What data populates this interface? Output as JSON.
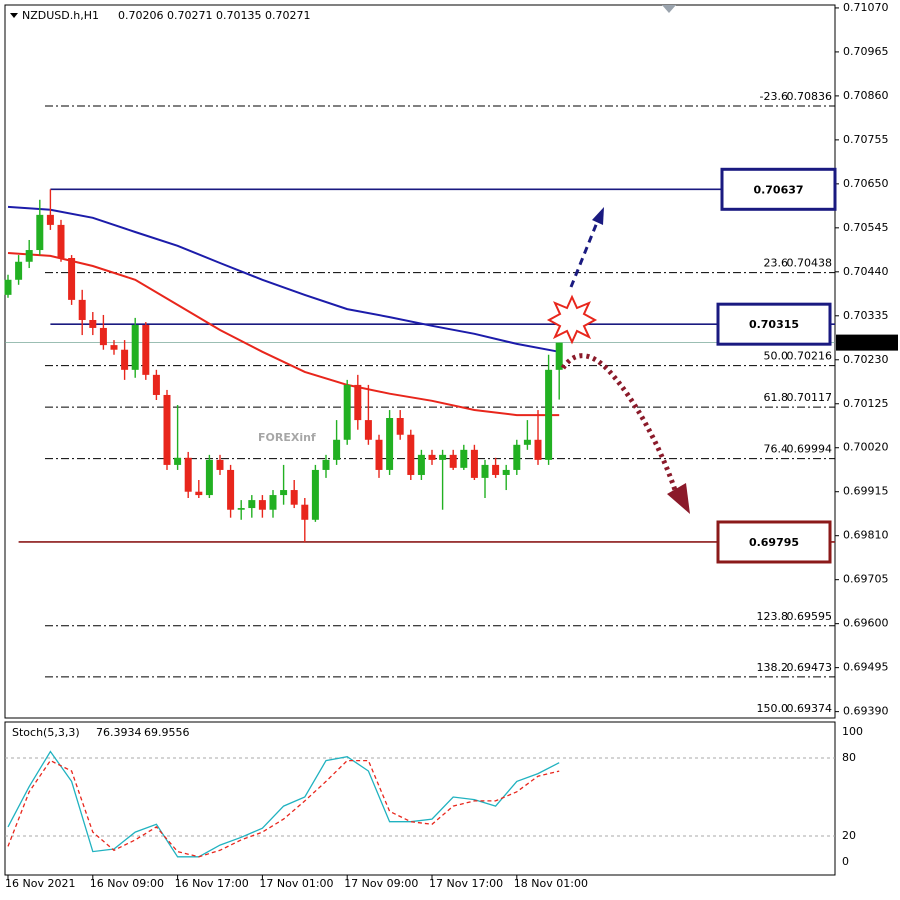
{
  "chart_data": [
    {
      "type": "candlestick",
      "title": "NZDUSD.h,H1",
      "watermark": "FOREXinf",
      "categories": [
        "16 Nov 2021",
        null,
        null,
        null,
        null,
        null,
        null,
        null,
        "16 Nov 09:00",
        null,
        null,
        null,
        null,
        null,
        null,
        null,
        "16 Nov 17:00",
        null,
        null,
        null,
        null,
        null,
        null,
        null,
        "17 Nov 01:00",
        null,
        null,
        null,
        null,
        null,
        null,
        null,
        "17 Nov 09:00",
        null,
        null,
        null,
        null,
        null,
        null,
        null,
        "17 Nov 17:00",
        null,
        null,
        null,
        null,
        null,
        null,
        null,
        "18 Nov 01:00",
        null,
        null,
        null,
        null
      ],
      "ohlc": {
        "open": [
          0.70385,
          0.70421,
          0.70464,
          0.70492,
          0.70576,
          0.70552,
          0.70473,
          0.70373,
          0.70325,
          0.70306,
          0.70265,
          0.70254,
          0.70206,
          0.70313,
          0.70194,
          0.70146,
          0.69979,
          0.69996,
          0.69915,
          0.69907,
          0.69991,
          0.69967,
          0.69872,
          0.69876,
          0.69895,
          0.69872,
          0.69907,
          0.69919,
          0.69884,
          0.69848,
          0.69967,
          0.69991,
          0.70039,
          0.7017,
          0.70086,
          0.70039,
          0.69967,
          0.70091,
          0.70051,
          0.69955,
          0.70003,
          0.69991,
          0.70003,
          0.69972,
          0.70015,
          0.69948,
          0.69979,
          0.69955,
          0.69967,
          0.70027,
          0.70039,
          0.69991,
          0.70206
        ],
        "high": [
          0.70433,
          0.7048,
          0.70516,
          0.70612,
          0.70637,
          0.70564,
          0.7048,
          0.70397,
          0.70344,
          0.70337,
          0.70277,
          0.70277,
          0.7033,
          0.7032,
          0.70206,
          0.70158,
          0.70122,
          0.7001,
          0.69943,
          0.70003,
          0.70003,
          0.69979,
          0.69895,
          0.69907,
          0.69907,
          0.69919,
          0.69979,
          0.69943,
          0.699,
          0.69979,
          0.70003,
          0.70086,
          0.70182,
          0.70194,
          0.7017,
          0.70051,
          0.7011,
          0.7011,
          0.70063,
          0.70015,
          0.70015,
          0.70015,
          0.70015,
          0.70027,
          0.70027,
          0.69991,
          0.69996,
          0.69979,
          0.70039,
          0.70086,
          0.7011,
          0.70242,
          0.70271
        ],
        "low": [
          0.70378,
          0.70409,
          0.70449,
          0.7048,
          0.7054,
          0.70464,
          0.70361,
          0.70289,
          0.70289,
          0.70254,
          0.70242,
          0.70182,
          0.70187,
          0.70182,
          0.70134,
          0.69967,
          0.69967,
          0.699,
          0.699,
          0.699,
          0.69955,
          0.69853,
          0.69848,
          0.69853,
          0.69853,
          0.69853,
          0.69884,
          0.69876,
          0.69795,
          0.69843,
          0.69948,
          0.69979,
          0.70027,
          0.70063,
          0.70027,
          0.69948,
          0.69955,
          0.70039,
          0.69943,
          0.69943,
          0.69979,
          0.69872,
          0.69967,
          0.69967,
          0.69943,
          0.699,
          0.69948,
          0.69919,
          0.69955,
          0.70015,
          0.69979,
          0.69979,
          0.70135
        ],
        "close": [
          0.70421,
          0.70464,
          0.70492,
          0.70576,
          0.70552,
          0.70473,
          0.70373,
          0.70325,
          0.70306,
          0.70265,
          0.70254,
          0.70206,
          0.70313,
          0.70194,
          0.70146,
          0.69979,
          0.69996,
          0.69915,
          0.69907,
          0.69991,
          0.69967,
          0.69872,
          0.69876,
          0.69895,
          0.69872,
          0.69907,
          0.69919,
          0.69884,
          0.69848,
          0.69967,
          0.69991,
          0.70039,
          0.7017,
          0.70086,
          0.70039,
          0.69967,
          0.70091,
          0.70051,
          0.69955,
          0.70003,
          0.69991,
          0.70003,
          0.69972,
          0.70015,
          0.69948,
          0.69979,
          0.69955,
          0.69967,
          0.70027,
          0.70039,
          0.69991,
          0.70206,
          0.70271
        ]
      },
      "up_color": "#22b022",
      "down_color": "#e8261c",
      "lines": [
        {
          "color": "#1c1caa",
          "x": [
            0,
            4,
            8,
            12,
            16,
            20,
            24,
            28,
            32,
            36,
            40,
            44,
            48,
            52
          ],
          "values": [
            0.70595,
            0.70588,
            0.70569,
            0.70535,
            0.70502,
            0.70461,
            0.70421,
            0.70385,
            0.70351,
            0.70332,
            0.70311,
            0.70292,
            0.70268,
            0.70249
          ]
        },
        {
          "color": "#e8261c",
          "x": [
            0,
            4,
            8,
            12,
            16,
            20,
            24,
            28,
            32,
            36,
            40,
            44,
            48,
            52
          ],
          "values": [
            0.70485,
            0.70478,
            0.70454,
            0.70421,
            0.70361,
            0.70301,
            0.70249,
            0.70201,
            0.7017,
            0.70149,
            0.70132,
            0.7011,
            0.70098,
            0.70098
          ]
        }
      ],
      "levels": [
        {
          "value": 0.70637,
          "color": "#1a1a80",
          "start": 4
        },
        {
          "value": 0.70315,
          "color": "#1a1a80",
          "start": 4
        },
        {
          "value": 0.69795,
          "color": "#8b1a1a",
          "start": 1
        }
      ],
      "fib_levels": [
        {
          "level": "-23.6",
          "value": 0.70836
        },
        {
          "level": "23.6",
          "value": 0.70438
        },
        {
          "level": "50.0",
          "value": 0.70216
        },
        {
          "level": "61.8",
          "value": 0.70117
        },
        {
          "level": "76.4",
          "value": 0.69994
        },
        {
          "level": "123.8",
          "value": 0.69595
        },
        {
          "level": "138.2",
          "value": 0.69473
        },
        {
          "level": "150.0",
          "value": 0.69374
        }
      ],
      "ylim": [
        0.6937,
        0.71077
      ],
      "yticks": [
        {
          "value": 0.7107,
          "label": "0.71070"
        },
        {
          "value": 0.70965,
          "label": "0.70965"
        },
        {
          "value": 0.7086,
          "label": "0.70860"
        },
        {
          "value": 0.70755,
          "label": "0.70755"
        },
        {
          "value": 0.7065,
          "label": "0.70650"
        },
        {
          "value": 0.70545,
          "label": "0.70545"
        },
        {
          "value": 0.7044,
          "label": "0.70440"
        },
        {
          "value": 0.70335,
          "label": "0.70335"
        },
        {
          "value": 0.7023,
          "label": "0.70230"
        },
        {
          "value": 0.70125,
          "label": "0.70125"
        },
        {
          "value": 0.7002,
          "label": "0.70020"
        },
        {
          "value": 0.69915,
          "label": "0.69915"
        },
        {
          "value": 0.6981,
          "label": "0.69810"
        },
        {
          "value": 0.69705,
          "label": "0.69705"
        },
        {
          "value": 0.696,
          "label": "0.69600"
        },
        {
          "value": 0.69495,
          "label": "0.69495"
        },
        {
          "value": 0.6939,
          "label": "0.69390"
        }
      ]
    },
    {
      "type": "line",
      "title": "Stoch(5,3,3)",
      "x": [
        0,
        2,
        4,
        6,
        8,
        10,
        12,
        14,
        16,
        18,
        20,
        22,
        24,
        26,
        28,
        30,
        32,
        34,
        36,
        38,
        40,
        42,
        44,
        46,
        48,
        50,
        52
      ],
      "series": [
        {
          "color": "#20b2c0",
          "dashed": false,
          "values": [
            27,
            58,
            85,
            62,
            8,
            10,
            23,
            29,
            4,
            4,
            13,
            19,
            26,
            43,
            50,
            78,
            81,
            70,
            31,
            31,
            33,
            50,
            48,
            43,
            62,
            68,
            76.3934
          ]
        },
        {
          "color": "#e8261c",
          "dashed": true,
          "values": [
            12,
            54,
            78,
            70,
            23,
            9,
            17,
            27,
            8,
            4,
            9,
            17,
            23,
            33,
            47,
            62,
            78,
            78,
            39,
            31,
            29,
            43,
            47,
            47,
            54,
            66,
            69.9556
          ]
        }
      ],
      "ylim": [
        0,
        100
      ],
      "yticks": [
        100,
        80,
        20,
        0
      ]
    }
  ]
}
